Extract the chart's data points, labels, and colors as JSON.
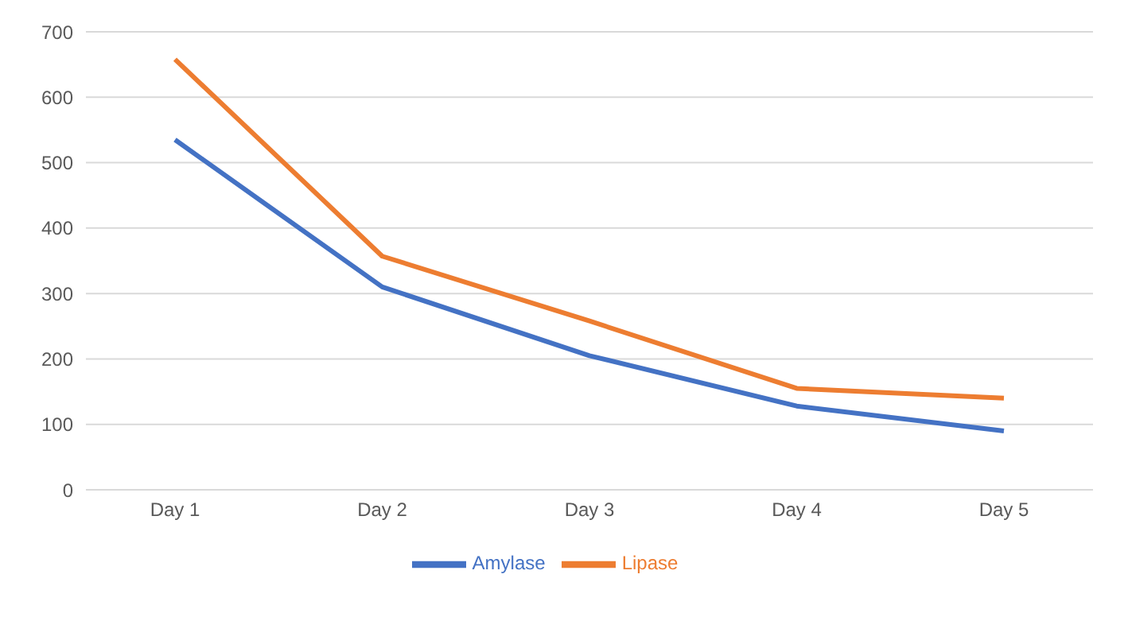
{
  "chart_data": {
    "type": "line",
    "categories": [
      "Day 1",
      "Day 2",
      "Day 3",
      "Day 4",
      "Day 5"
    ],
    "series": [
      {
        "name": "Amylase",
        "color": "#4472c4",
        "values": [
          535,
          310,
          205,
          128,
          90
        ]
      },
      {
        "name": "Lipase",
        "color": "#ed7d31",
        "values": [
          658,
          357,
          258,
          155,
          140
        ]
      }
    ],
    "ylim": [
      0,
      700
    ],
    "yticks": [
      0,
      100,
      200,
      300,
      400,
      500,
      600,
      700
    ],
    "grid": "y",
    "legend": "bottom",
    "marker": "none",
    "line_style": "solid"
  }
}
